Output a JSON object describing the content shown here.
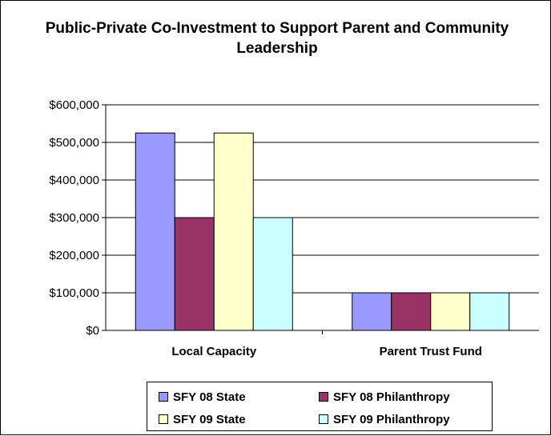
{
  "chart_data": {
    "type": "bar",
    "title": "Public-Private Co-Investment to Support Parent and Community Leadership",
    "categories": [
      "Local Capacity",
      "Parent Trust Fund"
    ],
    "series": [
      {
        "name": "SFY 08 State",
        "values": [
          525000,
          100000
        ],
        "color": "#9999ff"
      },
      {
        "name": "SFY 08 Philanthropy",
        "values": [
          300000,
          100000
        ],
        "color": "#993366"
      },
      {
        "name": "SFY 09 State",
        "values": [
          525000,
          100000
        ],
        "color": "#ffffcc"
      },
      {
        "name": "SFY 09 Philanthropy",
        "values": [
          300000,
          100000
        ],
        "color": "#ccffff"
      }
    ],
    "yticks": [
      "$0",
      "$100,000",
      "$200,000",
      "$300,000",
      "$400,000",
      "$500,000",
      "$600,000"
    ],
    "ylim": [
      0,
      600000
    ],
    "grid": true,
    "legend_position": "bottom"
  }
}
